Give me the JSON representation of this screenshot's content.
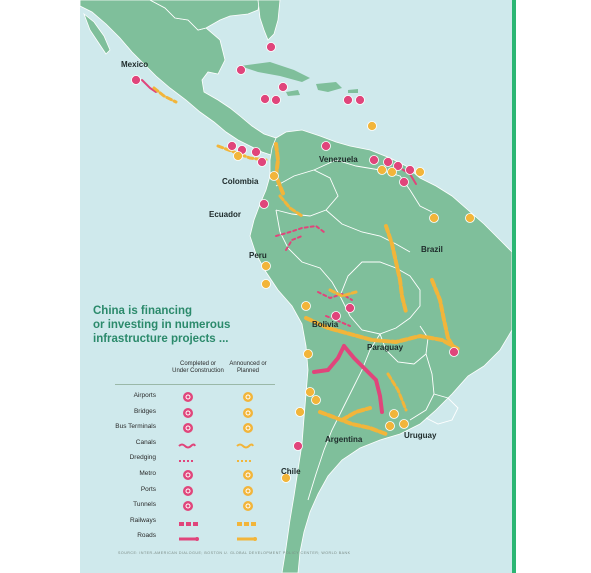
{
  "colors": {
    "ocean": "#cfe9ec",
    "land": "#7fbf9b",
    "land_dark": "#6aa887",
    "border": "#ffffff",
    "completed": "#e0457b",
    "planned": "#f2b53a",
    "title": "#2b8a6b"
  },
  "countries": [
    {
      "id": "mexico",
      "label": "Mexico"
    },
    {
      "id": "venezuela",
      "label": "Venezuela"
    },
    {
      "id": "colombia",
      "label": "Colombia"
    },
    {
      "id": "ecuador",
      "label": "Ecuador"
    },
    {
      "id": "brazil",
      "label": "Brazil"
    },
    {
      "id": "peru",
      "label": "Peru"
    },
    {
      "id": "bolivia",
      "label": "Bolivia"
    },
    {
      "id": "paraguay",
      "label": "Paraguay"
    },
    {
      "id": "argentina",
      "label": "Argentina"
    },
    {
      "id": "uruguay",
      "label": "Uruguay"
    },
    {
      "id": "chile",
      "label": "Chile"
    }
  ],
  "title_lines": [
    "China is financing",
    "or investing in numerous",
    "infrastructure projects ..."
  ],
  "legend": {
    "col_completed": [
      "Completed or",
      "Under Construction"
    ],
    "col_planned": [
      "Announced or",
      "Planned"
    ],
    "items": [
      {
        "label": "Airports",
        "icon": "airport-icon"
      },
      {
        "label": "Bridges",
        "icon": "bridge-icon"
      },
      {
        "label": "Bus Terminals",
        "icon": "bus-icon"
      },
      {
        "label": "Canals",
        "icon": "canal-line"
      },
      {
        "label": "Dredging",
        "icon": "dredging-line"
      },
      {
        "label": "Metro",
        "icon": "metro-icon"
      },
      {
        "label": "Ports",
        "icon": "anchor-icon"
      },
      {
        "label": "Tunnels",
        "icon": "tunnel-icon"
      },
      {
        "label": "Railways",
        "icon": "railway-line"
      },
      {
        "label": "Roads",
        "icon": "road-line"
      }
    ]
  },
  "source": "SOURCE: INTER-AMERICAN DIALOGUE; BOSTON U. GLOBAL DEVELOPMENT POLICY CENTER; WORLD BANK"
}
